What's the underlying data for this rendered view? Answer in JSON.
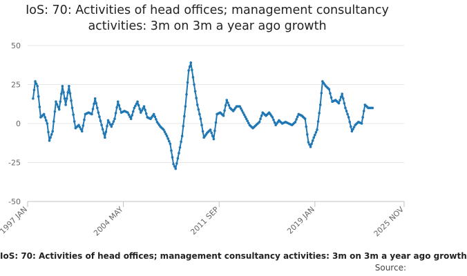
{
  "chart_data": {
    "type": "line",
    "title": "IoS: 70: Activities of head offices; management consultancy activities: 3m on 3m a year ago growth",
    "series_name": "IoS: 70: Activities of head offices; management consultancy activities: 3m on 3m a year ago growth",
    "source_label": "Source:",
    "xlabel": "",
    "ylabel": "",
    "ylim": [
      -50,
      50
    ],
    "yticks": [
      -50,
      -25,
      0,
      25,
      50
    ],
    "xticks": [
      "1997 JAN",
      "2004 MAY",
      "2011 SEP",
      "2019 JAN",
      "2025 NOV"
    ],
    "grid": true,
    "legend_position": "bottom",
    "color": "#1f77b4",
    "x_start": "1997 JAN",
    "x_end": "2025 NOV",
    "points": [
      {
        "x": "1997 JUN",
        "y": 16
      },
      {
        "x": "1997 AUG",
        "y": 27
      },
      {
        "x": "1997 OCT",
        "y": 24
      },
      {
        "x": "1998 JAN",
        "y": 4
      },
      {
        "x": "1998 APR",
        "y": 6
      },
      {
        "x": "1998 JUL",
        "y": 0
      },
      {
        "x": "1998 SEP",
        "y": -11
      },
      {
        "x": "1998 DEC",
        "y": -5
      },
      {
        "x": "1999 MAR",
        "y": 14
      },
      {
        "x": "1999 JUN",
        "y": 9
      },
      {
        "x": "1999 SEP",
        "y": 24
      },
      {
        "x": "1999 DEC",
        "y": 12
      },
      {
        "x": "2000 MAR",
        "y": 24
      },
      {
        "x": "2000 JUN",
        "y": 10
      },
      {
        "x": "2000 SEP",
        "y": -3
      },
      {
        "x": "2000 DEC",
        "y": -1
      },
      {
        "x": "2001 MAR",
        "y": -5
      },
      {
        "x": "2001 JUN",
        "y": 6
      },
      {
        "x": "2001 SEP",
        "y": 7
      },
      {
        "x": "2001 DEC",
        "y": 6
      },
      {
        "x": "2002 MAR",
        "y": 16
      },
      {
        "x": "2002 JUN",
        "y": 7
      },
      {
        "x": "2002 SEP",
        "y": -1
      },
      {
        "x": "2002 DEC",
        "y": -9
      },
      {
        "x": "2003 MAR",
        "y": 2
      },
      {
        "x": "2003 JUN",
        "y": -2
      },
      {
        "x": "2003 SEP",
        "y": 3
      },
      {
        "x": "2003 DEC",
        "y": 14
      },
      {
        "x": "2004 MAR",
        "y": 7
      },
      {
        "x": "2004 JUN",
        "y": 8
      },
      {
        "x": "2004 SEP",
        "y": 7
      },
      {
        "x": "2004 DEC",
        "y": 3
      },
      {
        "x": "2005 MAR",
        "y": 10
      },
      {
        "x": "2005 JUN",
        "y": 14
      },
      {
        "x": "2005 SEP",
        "y": 7
      },
      {
        "x": "2005 DEC",
        "y": 11
      },
      {
        "x": "2006 MAR",
        "y": 4
      },
      {
        "x": "2006 JUN",
        "y": 3
      },
      {
        "x": "2006 SEP",
        "y": 6
      },
      {
        "x": "2006 DEC",
        "y": 1
      },
      {
        "x": "2007 MAR",
        "y": -2
      },
      {
        "x": "2007 JUN",
        "y": -4
      },
      {
        "x": "2007 SEP",
        "y": -8
      },
      {
        "x": "2007 DEC",
        "y": -13
      },
      {
        "x": "2008 MAR",
        "y": -26
      },
      {
        "x": "2008 MAY",
        "y": -29
      },
      {
        "x": "2008 AUG",
        "y": -19
      },
      {
        "x": "2008 NOV",
        "y": -8
      },
      {
        "x": "2009 FEB",
        "y": 11
      },
      {
        "x": "2009 MAY",
        "y": 34
      },
      {
        "x": "2009 JUL",
        "y": 39
      },
      {
        "x": "2009 OCT",
        "y": 25
      },
      {
        "x": "2010 JAN",
        "y": 12
      },
      {
        "x": "2010 APR",
        "y": 3
      },
      {
        "x": "2010 JUL",
        "y": -9
      },
      {
        "x": "2010 OCT",
        "y": -6
      },
      {
        "x": "2011 JAN",
        "y": -4
      },
      {
        "x": "2011 APR",
        "y": -10
      },
      {
        "x": "2011 JUL",
        "y": 6
      },
      {
        "x": "2011 OCT",
        "y": 7
      },
      {
        "x": "2012 JAN",
        "y": 5
      },
      {
        "x": "2012 APR",
        "y": 15
      },
      {
        "x": "2012 JUL",
        "y": 10
      },
      {
        "x": "2012 OCT",
        "y": 8
      },
      {
        "x": "2013 JAN",
        "y": 11
      },
      {
        "x": "2013 APR",
        "y": 11
      },
      {
        "x": "2013 JUL",
        "y": 7
      },
      {
        "x": "2013 OCT",
        "y": 3
      },
      {
        "x": "2014 JAN",
        "y": -1
      },
      {
        "x": "2014 APR",
        "y": -3
      },
      {
        "x": "2014 JUL",
        "y": -1
      },
      {
        "x": "2014 OCT",
        "y": 1
      },
      {
        "x": "2015 JAN",
        "y": 7
      },
      {
        "x": "2015 APR",
        "y": 5
      },
      {
        "x": "2015 JUL",
        "y": 7
      },
      {
        "x": "2015 OCT",
        "y": 4
      },
      {
        "x": "2016 JAN",
        "y": -1
      },
      {
        "x": "2016 APR",
        "y": 2
      },
      {
        "x": "2016 JUL",
        "y": 0
      },
      {
        "x": "2016 OCT",
        "y": 1
      },
      {
        "x": "2017 JAN",
        "y": 0
      },
      {
        "x": "2017 APR",
        "y": -1
      },
      {
        "x": "2017 JUL",
        "y": 1
      },
      {
        "x": "2017 OCT",
        "y": 6
      },
      {
        "x": "2018 JAN",
        "y": 5
      },
      {
        "x": "2018 APR",
        "y": 3
      },
      {
        "x": "2018 JUL",
        "y": -12
      },
      {
        "x": "2018 SEP",
        "y": -15
      },
      {
        "x": "2018 DEC",
        "y": -9
      },
      {
        "x": "2019 MAR",
        "y": -4
      },
      {
        "x": "2019 JUN",
        "y": 12
      },
      {
        "x": "2019 AUG",
        "y": 27
      },
      {
        "x": "2019 NOV",
        "y": 24
      },
      {
        "x": "2020 FEB",
        "y": 22
      },
      {
        "x": "2020 MAY",
        "y": 14
      },
      {
        "x": "2020 AUG",
        "y": 15
      },
      {
        "x": "2020 NOV",
        "y": 13
      },
      {
        "x": "2021 FEB",
        "y": 19
      },
      {
        "x": "2021 MAY",
        "y": 10
      },
      {
        "x": "2021 AUG",
        "y": 4
      },
      {
        "x": "2021 NOV",
        "y": -5
      },
      {
        "x": "2022 FEB",
        "y": -1
      },
      {
        "x": "2022 MAY",
        "y": 1
      },
      {
        "x": "2022 AUG",
        "y": 0
      },
      {
        "x": "2022 NOV",
        "y": 12
      },
      {
        "x": "2023 FEB",
        "y": 10
      },
      {
        "x": "2023 JUN",
        "y": 10
      }
    ]
  }
}
